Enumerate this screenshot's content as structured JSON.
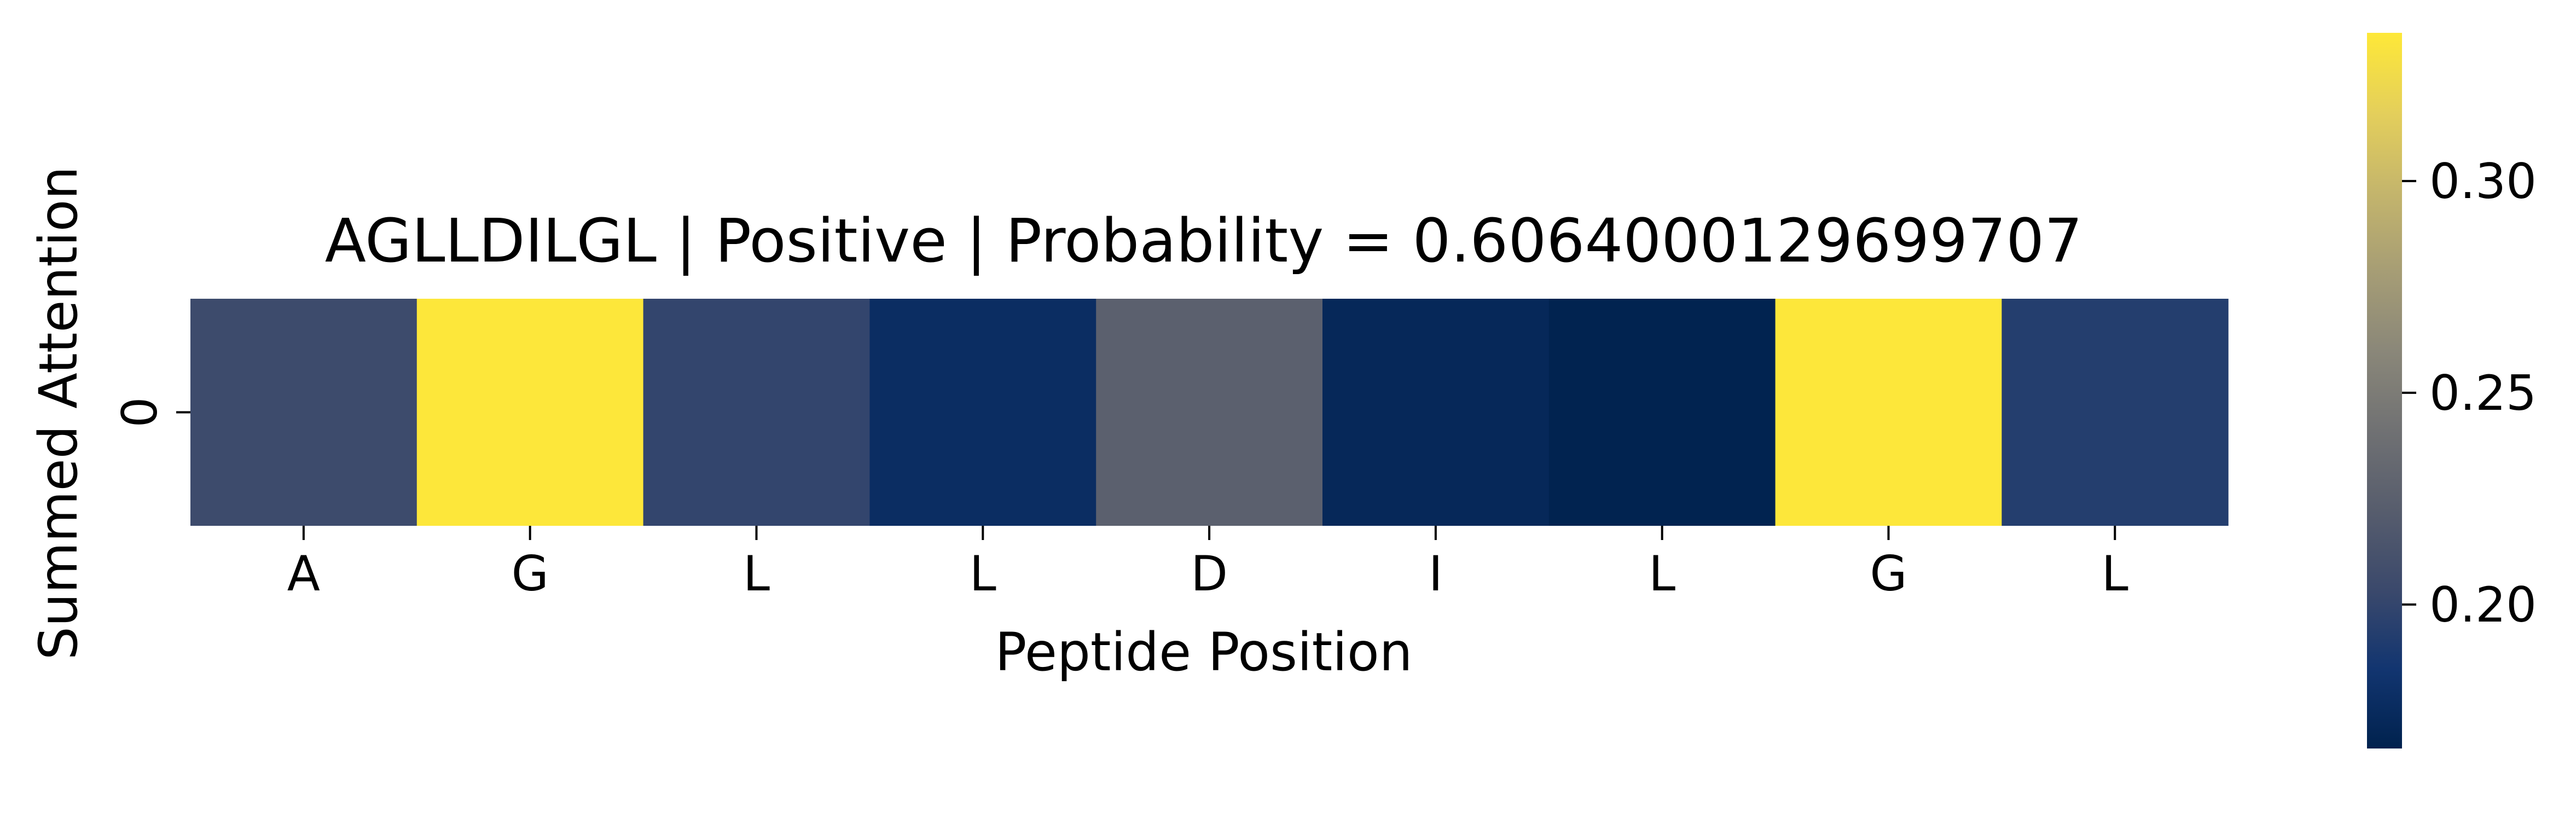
{
  "chart_data": {
    "type": "heatmap",
    "title": "AGLLDILGL | Positive | Probability = 0.6064000129699707",
    "xlabel": "Peptide Position",
    "ylabel": "Summed Attention",
    "categories": [
      "A",
      "G",
      "L",
      "L",
      "D",
      "I",
      "L",
      "G",
      "L"
    ],
    "rows": [
      "0"
    ],
    "values": [
      [
        0.205,
        0.334,
        0.2,
        0.177,
        0.225,
        0.172,
        0.167,
        0.334,
        0.193
      ]
    ],
    "colormap": "cividis",
    "cmap_range": [
      0.166,
      0.335
    ],
    "colorbar": {
      "ticks": [
        0.3,
        0.25,
        0.2
      ],
      "tick_labels": [
        "0.30",
        "0.25",
        "0.20"
      ]
    },
    "colors": {
      "cividis_stops": [
        "#00224e",
        "#123570",
        "#3b496c",
        "#575d6d",
        "#707173",
        "#8a8779",
        "#a69d75",
        "#c4b56c",
        "#e4cf5b",
        "#fee838"
      ]
    }
  }
}
